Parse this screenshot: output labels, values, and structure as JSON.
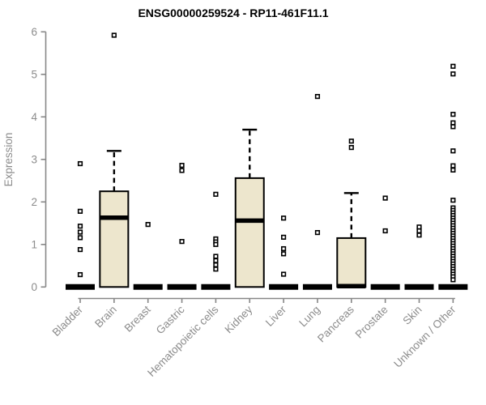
{
  "title": "ENSG00000259524 - RP11-461F11.1",
  "chart_data": {
    "type": "boxplot",
    "title": "ENSG00000259524 - RP11-461F11.1",
    "ylabel": "Expression",
    "xlabel": "",
    "ylim": [
      0,
      6
    ],
    "yticks": [
      0,
      1,
      2,
      3,
      4,
      5,
      6
    ],
    "grid": false,
    "legend": "none",
    "categories": [
      "Bladder",
      "Brain",
      "Breast",
      "Gastric",
      "Hematopoietic cells",
      "Kidney",
      "Liver",
      "Lung",
      "Pancreas",
      "Prostate",
      "Skin",
      "Unknown / Other"
    ],
    "boxes": [
      {
        "category": "Bladder",
        "whisker_low": 0,
        "q1": 0,
        "median": 0,
        "q3": 0,
        "whisker_high": 0,
        "outliers": [
          2.9,
          1.78,
          1.43,
          1.29,
          1.16,
          0.88,
          0.29
        ]
      },
      {
        "category": "Brain",
        "whisker_low": 0,
        "q1": 0,
        "median": 1.63,
        "q3": 2.25,
        "whisker_high": 3.2,
        "outliers": [
          5.92
        ]
      },
      {
        "category": "Breast",
        "whisker_low": 0,
        "q1": 0,
        "median": 0,
        "q3": 0,
        "whisker_high": 0,
        "outliers": [
          1.47
        ]
      },
      {
        "category": "Gastric",
        "whisker_low": 0,
        "q1": 0,
        "median": 0,
        "q3": 0,
        "whisker_high": 0,
        "outliers": [
          2.86,
          2.74,
          1.07
        ]
      },
      {
        "category": "Hematopoietic cells",
        "whisker_low": 0,
        "q1": 0,
        "median": 0,
        "q3": 0,
        "whisker_high": 0,
        "outliers": [
          2.18,
          1.13,
          1.06,
          1.0,
          0.72,
          0.62,
          0.52,
          0.42
        ]
      },
      {
        "category": "Kidney",
        "whisker_low": 0,
        "q1": 0,
        "median": 1.56,
        "q3": 2.56,
        "whisker_high": 3.7,
        "outliers": []
      },
      {
        "category": "Liver",
        "whisker_low": 0,
        "q1": 0,
        "median": 0,
        "q3": 0,
        "whisker_high": 0,
        "outliers": [
          1.62,
          1.17,
          0.9,
          0.78,
          0.3
        ]
      },
      {
        "category": "Lung",
        "whisker_low": 0,
        "q1": 0,
        "median": 0,
        "q3": 0,
        "whisker_high": 0,
        "outliers": [
          4.48,
          1.28
        ]
      },
      {
        "category": "Pancreas",
        "whisker_low": 0,
        "q1": 0,
        "median": 0.02,
        "q3": 1.15,
        "whisker_high": 2.21,
        "outliers": [
          3.43,
          3.28
        ]
      },
      {
        "category": "Prostate",
        "whisker_low": 0,
        "q1": 0,
        "median": 0,
        "q3": 0,
        "whisker_high": 0,
        "outliers": [
          2.09,
          1.32
        ]
      },
      {
        "category": "Skin",
        "whisker_low": 0,
        "q1": 0,
        "median": 0,
        "q3": 0,
        "whisker_high": 0,
        "outliers": [
          1.41,
          1.32,
          1.22
        ]
      },
      {
        "category": "Unknown / Other",
        "whisker_low": 0,
        "q1": 0,
        "median": 0,
        "q3": 0,
        "whisker_high": 0,
        "outliers": [
          5.19,
          5.01,
          4.06,
          3.86,
          3.77,
          3.2,
          2.85,
          2.75,
          2.04,
          1.86,
          1.8,
          1.74,
          1.68,
          1.62,
          1.56,
          1.5,
          1.44,
          1.38,
          1.32,
          1.26,
          1.2,
          1.14,
          1.08,
          1.02,
          0.96,
          0.9,
          0.84,
          0.78,
          0.72,
          0.66,
          0.6,
          0.54,
          0.48,
          0.42,
          0.36,
          0.3,
          0.24,
          0.17
        ]
      }
    ],
    "colors": {
      "box_fill": "#EDE6CD",
      "box_stroke": "#000000",
      "median": "#000000",
      "whisker": "#000000",
      "outlier_stroke": "#000000",
      "outlier_fill": "#ffffff",
      "axis": "#878787",
      "axis_text": "#8c8c8c",
      "title_text": "#000000",
      "background": "#ffffff"
    }
  }
}
